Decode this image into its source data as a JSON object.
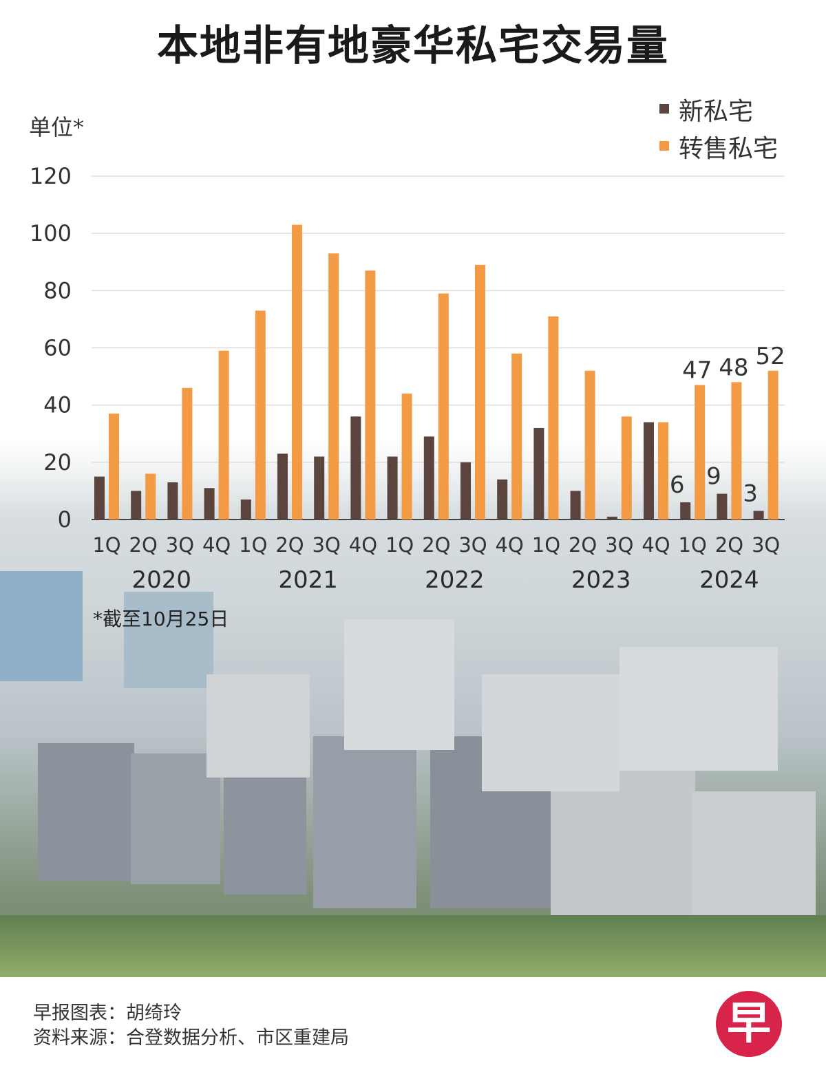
{
  "title": "本地非有地豪华私宅交易量",
  "footnote": "*截至10月25日",
  "credits": [
    "早报图表：胡绮玲",
    "资料来源：合登数据分析、市区重建局"
  ],
  "logo_text": "早",
  "colors": {
    "new": "#5b443d",
    "resale": "#f39a45",
    "grid": "#dddddd"
  },
  "chart_data": {
    "type": "bar",
    "ylabel": "单位*",
    "ylim": [
      0,
      120
    ],
    "yticks": [
      0,
      20,
      40,
      60,
      80,
      100,
      120
    ],
    "legend_position": "top-right",
    "categories": [
      "1Q",
      "2Q",
      "3Q",
      "4Q",
      "1Q",
      "2Q",
      "3Q",
      "4Q",
      "1Q",
      "2Q",
      "3Q",
      "4Q",
      "1Q",
      "2Q",
      "3Q",
      "4Q",
      "1Q",
      "2Q",
      "3Q"
    ],
    "years": [
      {
        "label": "2020",
        "span": [
          0,
          3
        ]
      },
      {
        "label": "2021",
        "span": [
          4,
          7
        ]
      },
      {
        "label": "2022",
        "span": [
          8,
          11
        ]
      },
      {
        "label": "2023",
        "span": [
          12,
          15
        ]
      },
      {
        "label": "2024",
        "span": [
          16,
          18
        ]
      }
    ],
    "series": [
      {
        "name": "新私宅",
        "key": "new",
        "values": [
          15,
          10,
          13,
          11,
          7,
          23,
          22,
          36,
          22,
          29,
          20,
          14,
          32,
          10,
          1,
          34,
          6,
          9,
          3
        ]
      },
      {
        "name": "转售私宅",
        "key": "resale",
        "values": [
          37,
          16,
          46,
          59,
          73,
          103,
          93,
          87,
          44,
          79,
          89,
          58,
          71,
          52,
          36,
          34,
          47,
          48,
          52
        ]
      }
    ],
    "data_labels": [
      {
        "series": 0,
        "index": 16,
        "text": "6"
      },
      {
        "series": 0,
        "index": 17,
        "text": "9"
      },
      {
        "series": 0,
        "index": 18,
        "text": "3"
      },
      {
        "series": 1,
        "index": 16,
        "text": "47"
      },
      {
        "series": 1,
        "index": 17,
        "text": "48"
      },
      {
        "series": 1,
        "index": 18,
        "text": "52"
      }
    ]
  }
}
